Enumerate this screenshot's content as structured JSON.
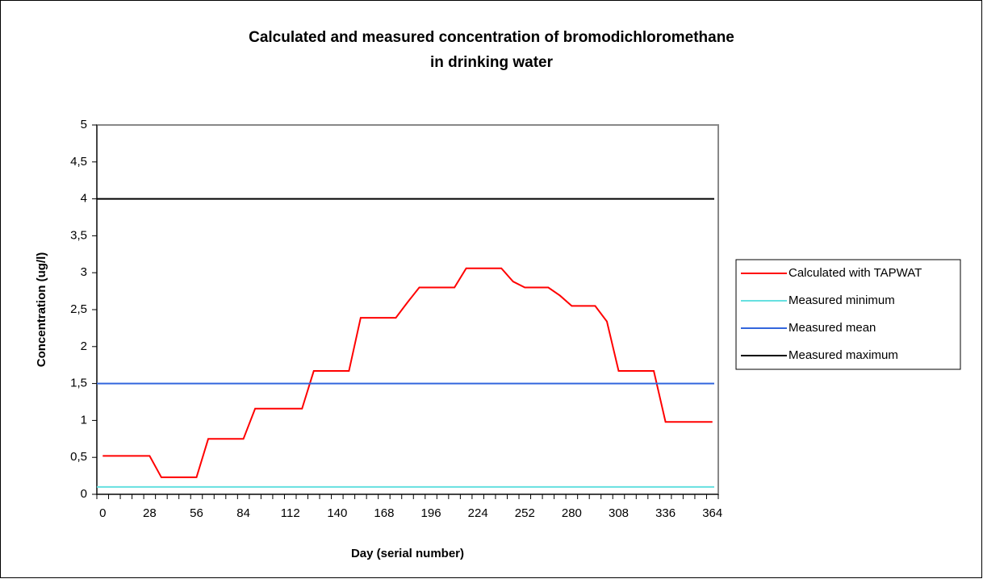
{
  "chart_data": {
    "type": "line",
    "title": [
      "Calculated and measured concentration of bromodichloromethane",
      "in drinking water"
    ],
    "x_label": "Day (serial number)",
    "y_label": "Concentration (ug/l)",
    "x": [
      0,
      7,
      14,
      21,
      28,
      35,
      42,
      49,
      56,
      63,
      70,
      77,
      84,
      91,
      98,
      105,
      112,
      119,
      126,
      133,
      140,
      147,
      154,
      161,
      168,
      175,
      182,
      189,
      196,
      203,
      210,
      217,
      224,
      231,
      238,
      245,
      252,
      259,
      266,
      273,
      280,
      287,
      294,
      301,
      308,
      315,
      322,
      329,
      336,
      343,
      350,
      357,
      364
    ],
    "series": [
      {
        "name": "Calculated with TAPWAT",
        "color": "#ff0000",
        "values": [
          0.52,
          0.52,
          0.52,
          0.52,
          0.52,
          0.23,
          0.23,
          0.23,
          0.23,
          0.75,
          0.75,
          0.75,
          0.75,
          1.16,
          1.16,
          1.16,
          1.16,
          1.16,
          1.67,
          1.67,
          1.67,
          1.67,
          2.39,
          2.39,
          2.39,
          2.39,
          2.6,
          2.8,
          2.8,
          2.8,
          2.8,
          3.06,
          3.06,
          3.06,
          3.06,
          2.88,
          2.8,
          2.8,
          2.8,
          2.69,
          2.55,
          2.55,
          2.55,
          2.34,
          1.67,
          1.67,
          1.67,
          1.67,
          0.98,
          0.98,
          0.98,
          0.98,
          0.98
        ]
      },
      {
        "name": "Measured minimum",
        "color": "#66e0e0",
        "value": 0.1
      },
      {
        "name": "Measured mean",
        "color": "#3366dd",
        "value": 1.5
      },
      {
        "name": "Measured maximum",
        "color": "#000000",
        "value": 4
      }
    ],
    "xlim": [
      -3.5,
      367.5
    ],
    "xticks": [
      0,
      28,
      56,
      84,
      112,
      140,
      168,
      196,
      224,
      252,
      280,
      308,
      336,
      364
    ],
    "ylim": [
      0,
      5
    ],
    "yticks": [
      0,
      {
        "value": 0.5,
        "label": "0,5"
      },
      1,
      {
        "value": 1.5,
        "label": "1,5"
      },
      2,
      {
        "value": 2.5,
        "label": "2,5"
      },
      3,
      {
        "value": 3.5,
        "label": "3,5"
      },
      4,
      {
        "value": 4.5,
        "label": "4,5"
      },
      5
    ],
    "grid": false,
    "legend": "right"
  }
}
